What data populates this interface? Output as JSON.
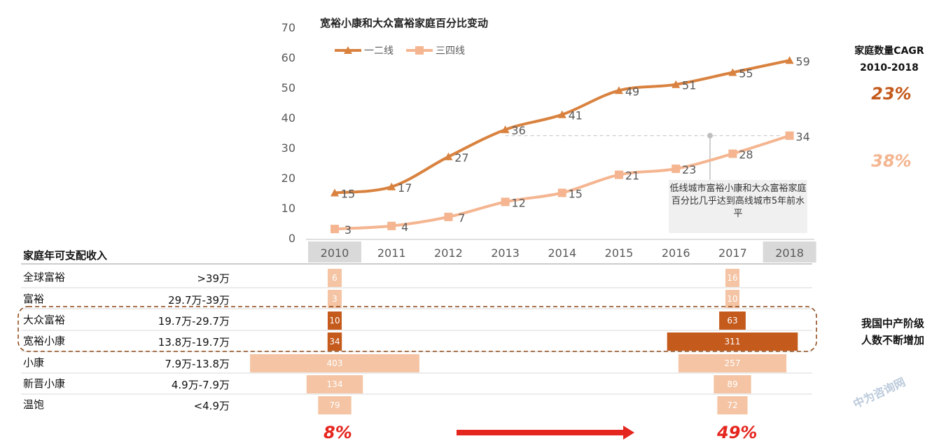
{
  "chart_data": {
    "type": "line",
    "title": "宽裕小康和大众富裕家庭百分比变动",
    "categories": [
      "2010",
      "2011",
      "2012",
      "2013",
      "2014",
      "2015",
      "2016",
      "2017",
      "2018"
    ],
    "ylim": [
      0,
      70
    ],
    "yticks": [
      "0",
      "10",
      "20",
      "30",
      "40",
      "50",
      "60",
      "70"
    ],
    "legend_position": "top-left",
    "series": [
      {
        "name": "一二线",
        "values": [
          15,
          17,
          27,
          36,
          41,
          49,
          51,
          55,
          59
        ],
        "color": "#d9823f",
        "marker": "triangle"
      },
      {
        "name": "三四线",
        "values": [
          3,
          4,
          7,
          12,
          15,
          21,
          23,
          28,
          34
        ],
        "color": "#f4b590",
        "marker": "square"
      }
    ],
    "highlighted_categories": [
      "2010",
      "2018"
    ],
    "annotation": "低线城市富裕小康和大众富裕家庭百分比几乎达到高线城市5年前水平"
  },
  "cagr": {
    "title_line1": "家庭数量CAGR",
    "title_line2": "2010-2018",
    "tier1": "23%",
    "tier2": "38%",
    "tier1_color": "#c45a1c",
    "tier2_color": "#f4b590"
  },
  "income_table": {
    "title": "家庭年可支配收入",
    "rows": [
      {
        "name": "全球富裕",
        "range": ">39万",
        "v2010": "6",
        "v2018": "16",
        "w2010": 6,
        "w2018": 16,
        "color": "#f4c4a4"
      },
      {
        "name": "富裕",
        "range": "29.7万-39万",
        "v2010": "3",
        "v2018": "10",
        "w2010": 3,
        "w2018": 10,
        "color": "#f4c4a4"
      },
      {
        "name": "大众富裕",
        "range": "19.7万-29.7万",
        "v2010": "10",
        "v2018": "63",
        "w2010": 10,
        "w2018": 63,
        "color": "#c45a1c"
      },
      {
        "name": "宽裕小康",
        "range": "13.8万-19.7万",
        "v2010": "34",
        "v2018": "311",
        "w2010": 34,
        "w2018": 311,
        "color": "#c45a1c"
      },
      {
        "name": "小康",
        "range": "7.9万-13.8万",
        "v2010": "403",
        "v2018": "257",
        "w2010": 403,
        "w2018": 257,
        "color": "#f4c4a4"
      },
      {
        "name": "新晋小康",
        "range": "4.9万-7.9万",
        "v2010": "134",
        "v2018": "89",
        "w2010": 134,
        "w2018": 89,
        "color": "#f4c4a4"
      },
      {
        "name": "温饱",
        "range": "<4.9万",
        "v2010": "79",
        "v2018": "72",
        "w2010": 79,
        "w2018": 72,
        "color": "#f4c4a4"
      }
    ],
    "pct_2010": "8%",
    "pct_2018": "49%"
  },
  "side_note": {
    "line1": "我国中产阶级",
    "line2": "人数不断增加"
  },
  "watermark": "中为咨询网"
}
